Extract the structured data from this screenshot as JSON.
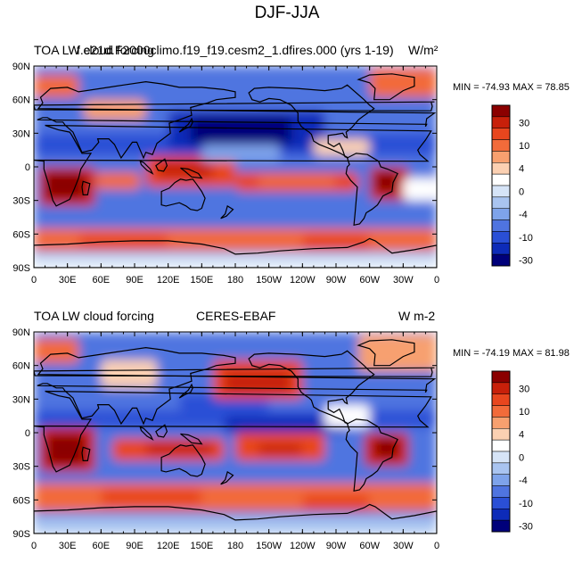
{
  "figure": {
    "title": "DJF-JJA"
  },
  "panels": [
    {
      "left_label": "TOA LW cloud forcing",
      "center_label": "f.e21d.F2000climo.f19_f19.cesm2_1.dfires.000 (yrs 1-19)",
      "units": "W/m²",
      "stats": "MIN = -74.93 MAX =  78.85"
    },
    {
      "left_label": "TOA LW cloud forcing",
      "center_label": "CERES-EBAF",
      "units": "W m-2",
      "stats": "MIN = -74.19 MAX =  81.98"
    }
  ],
  "chart_data": [
    {
      "type": "heatmap",
      "title": "f.e21d.F2000climo.f19_f19.cesm2_1.dfires.000 (yrs 1-19)",
      "xlabel": "",
      "ylabel": "",
      "x_ticks": [
        "0",
        "30E",
        "60E",
        "90E",
        "120E",
        "150E",
        "180",
        "150W",
        "120W",
        "90W",
        "60W",
        "30W",
        "0"
      ],
      "y_ticks": [
        "90N",
        "60N",
        "30N",
        "0",
        "30S",
        "60S",
        "90S"
      ],
      "xlim": [
        0,
        360
      ],
      "ylim": [
        -90,
        90
      ],
      "colorbar_labels": [
        "30",
        "10",
        "4",
        "0",
        "-4",
        "-10",
        "-30"
      ],
      "colorbar_colors": [
        "#8b0000",
        "#c8200a",
        "#e8461e",
        "#f26b3a",
        "#f7a06f",
        "#fbd0b2",
        "#ffffff",
        "#d6e4f7",
        "#a9c4f0",
        "#7ea3ea",
        "#4f74e0",
        "#2a4fd6",
        "#0d2bb8",
        "#00007a"
      ],
      "min": -74.93,
      "max": 78.85,
      "units": "W/m²"
    },
    {
      "type": "heatmap",
      "title": "CERES-EBAF",
      "xlabel": "",
      "ylabel": "",
      "x_ticks": [
        "0",
        "30E",
        "60E",
        "90E",
        "120E",
        "150E",
        "180",
        "150W",
        "120W",
        "90W",
        "60W",
        "30W",
        "0"
      ],
      "y_ticks": [
        "90N",
        "60N",
        "30N",
        "0",
        "30S",
        "60S",
        "90S"
      ],
      "xlim": [
        0,
        360
      ],
      "ylim": [
        -90,
        90
      ],
      "colorbar_labels": [
        "30",
        "10",
        "4",
        "0",
        "-4",
        "-10",
        "-30"
      ],
      "colorbar_colors": [
        "#8b0000",
        "#c8200a",
        "#e8461e",
        "#f26b3a",
        "#f7a06f",
        "#fbd0b2",
        "#ffffff",
        "#d6e4f7",
        "#a9c4f0",
        "#7ea3ea",
        "#4f74e0",
        "#2a4fd6",
        "#0d2bb8",
        "#00007a"
      ],
      "min": -74.19,
      "max": 81.98,
      "units": "W m-2"
    }
  ]
}
